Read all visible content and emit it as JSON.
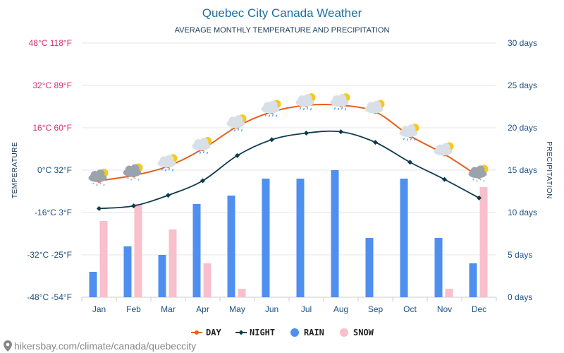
{
  "header": {
    "title": "Quebec City Canada Weather",
    "subtitle": "AVERAGE MONTHLY TEMPERATURE AND PRECIPITATION"
  },
  "axes": {
    "left_title": "TEMPERATURE",
    "right_title": "PRECIPITATION",
    "left_ticks": [
      {
        "label": "48°C 118°F",
        "value": 48,
        "color": "#d6306e"
      },
      {
        "label": "32°C 89°F",
        "value": 32,
        "color": "#d6306e"
      },
      {
        "label": "16°C 60°F",
        "value": 16,
        "color": "#d6306e"
      },
      {
        "label": "0°C 32°F",
        "value": 0,
        "color": "#1c4f85"
      },
      {
        "label": "-16°C 3°F",
        "value": -16,
        "color": "#1c4f85"
      },
      {
        "label": "-32°C -25°F",
        "value": -32,
        "color": "#1c4f85"
      },
      {
        "label": "-48°C -54°F",
        "value": -48,
        "color": "#1c4f85"
      }
    ],
    "right_ticks": [
      {
        "label": "30 days",
        "value": 30
      },
      {
        "label": "25 days",
        "value": 25
      },
      {
        "label": "20 days",
        "value": 20
      },
      {
        "label": "15 days",
        "value": 15
      },
      {
        "label": "10 days",
        "value": 10
      },
      {
        "label": "5 days",
        "value": 5
      },
      {
        "label": "0 days",
        "value": 0
      }
    ]
  },
  "legend": {
    "day": "DAY",
    "night": "NIGHT",
    "rain": "RAIN",
    "snow": "SNOW"
  },
  "footer": {
    "source": "hikersbay.com/climate/canada/quebeccity"
  },
  "colors": {
    "day": "#e8601c",
    "night": "#0d3b4f",
    "rain": "#4f8ff0",
    "snow": "#f9bfcc",
    "grid": "#e6e6e6",
    "month_label": "#1c4f85"
  },
  "chart_data": {
    "type": "bar",
    "categories": [
      "Jan",
      "Feb",
      "Mar",
      "Apr",
      "May",
      "Jun",
      "Jul",
      "Aug",
      "Sep",
      "Oct",
      "Nov",
      "Dec"
    ],
    "y_left_range": [
      -48,
      48
    ],
    "y_right_range": [
      0,
      30
    ],
    "grid": true,
    "legend_position": "bottom",
    "series": [
      {
        "name": "DAY",
        "kind": "line",
        "axis": "left",
        "unit": "°C",
        "values": [
          -4,
          -2,
          1.5,
          8,
          16.5,
          22,
          24.5,
          24.5,
          22,
          13,
          6,
          -2.5
        ]
      },
      {
        "name": "NIGHT",
        "kind": "line",
        "axis": "left",
        "unit": "°C",
        "values": [
          -14.5,
          -13.5,
          -9.5,
          -4,
          5.5,
          11.5,
          14,
          14.5,
          10.5,
          3,
          -3.5,
          -10.5
        ]
      },
      {
        "name": "RAIN",
        "kind": "bar",
        "axis": "right",
        "unit": "days",
        "values": [
          3,
          6,
          5,
          11,
          12,
          14,
          14,
          15,
          7,
          14,
          7,
          4
        ]
      },
      {
        "name": "SNOW",
        "kind": "bar",
        "axis": "right",
        "unit": "days",
        "values": [
          9,
          11,
          8,
          4,
          1,
          0,
          0,
          0,
          0,
          0,
          1,
          13
        ]
      }
    ],
    "weather_icons": [
      "cloud-sun-snow-icon",
      "cloud-sun-snow-icon",
      "cloud-sun-rain-icon",
      "cloud-sun-rain-icon",
      "cloud-sun-rain-icon",
      "cloud-sun-rain-icon",
      "cloud-sun-rain-icon",
      "cloud-sun-rain-icon",
      "cloud-sun-icon",
      "cloud-sun-rain-icon",
      "cloud-sun-icon",
      "cloud-sun-snow-icon"
    ]
  }
}
